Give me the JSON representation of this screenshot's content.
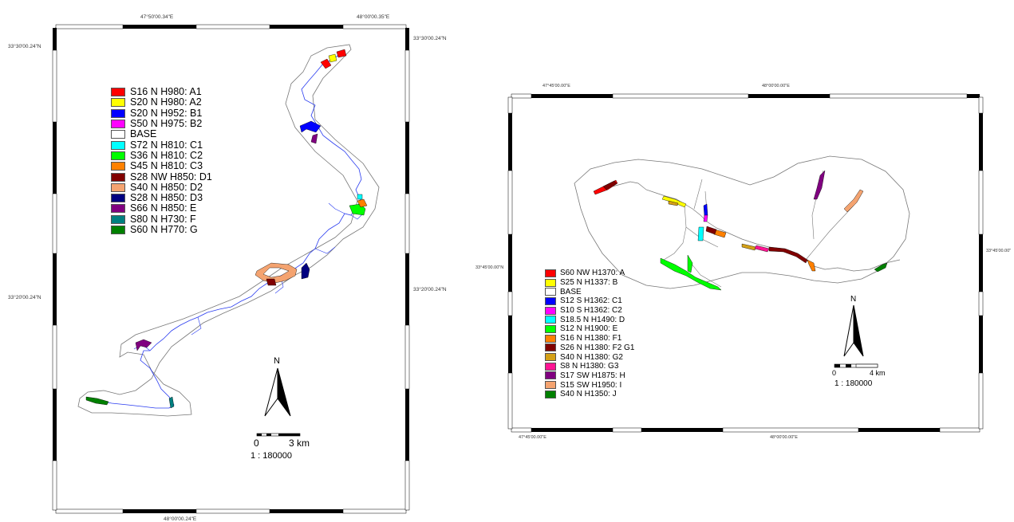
{
  "map1": {
    "coords": {
      "top_left": "47°50'00.34\"E",
      "top_right": "48°00'00.35\"E",
      "left_top": "33°30'00.24\"N",
      "right_top": "33°30'00.24\"N",
      "left_mid": "33°20'00.24\"N",
      "right_mid": "33°20'00.24\"N",
      "bottom": "48°00'00.24\"E"
    },
    "legend": [
      {
        "label": "S16 N H980: A1",
        "color": "#ff0000"
      },
      {
        "label": "S20 N H980: A2",
        "color": "#ffff00"
      },
      {
        "label": "S20 N H952: B1",
        "color": "#0000ff"
      },
      {
        "label": "S50 N H975: B2",
        "color": "#ff00ff"
      },
      {
        "label": "BASE",
        "color": "#ffffff"
      },
      {
        "label": "S72 N H810: C1",
        "color": "#00ffff"
      },
      {
        "label": "S36 N H810: C2",
        "color": "#00ff00"
      },
      {
        "label": "S45 N H810: C3",
        "color": "#ff8000"
      },
      {
        "label": "S28 NW H850: D1",
        "color": "#800000"
      },
      {
        "label": "S40 N H850: D2",
        "color": "#f4a370"
      },
      {
        "label": "S28 N H850: D3",
        "color": "#000080"
      },
      {
        "label": "S66 N H850: E",
        "color": "#800080"
      },
      {
        "label": "S80 N H730: F",
        "color": "#008080"
      },
      {
        "label": "S60 N H770: G",
        "color": "#008000"
      }
    ],
    "north_letter": "N",
    "scale_zero": "0",
    "scale_end": "3 km",
    "ratio": "1 : 180000"
  },
  "map2": {
    "coords": {
      "top_left": "47°45'00.00\"E",
      "top_right": "48°00'00.00\"E",
      "left_mid": "33°45'00.00\"N",
      "right_mid": "33°45'00.00\"",
      "bottom_left": "47°45'00.00\"E",
      "bottom_right": "48°00'00.00\"E"
    },
    "legend": [
      {
        "label": "S60 NW H1370: A",
        "color": "#ff0000"
      },
      {
        "label": "S25 N H1337: B",
        "color": "#ffff00"
      },
      {
        "label": "BASE",
        "color": "#ffffff"
      },
      {
        "label": "S12 S H1362: C1",
        "color": "#0000ff"
      },
      {
        "label": "S10 S H1362: C2",
        "color": "#ff00ff"
      },
      {
        "label": "S18.5 N H1490: D",
        "color": "#00ffff"
      },
      {
        "label": "S12 N H1900: E",
        "color": "#00ff00"
      },
      {
        "label": "S16 N H1380: F1",
        "color": "#ff8000"
      },
      {
        "label": "S26 N H1380: F2 G1",
        "color": "#800000"
      },
      {
        "label": "S40 N H1380: G2",
        "color": "#d4a017"
      },
      {
        "label": "S8 N H1380: G3",
        "color": "#ff1493"
      },
      {
        "label": "S17 SW H1875: H",
        "color": "#800080"
      },
      {
        "label": "S15 SW H1950: I",
        "color": "#f4a370"
      },
      {
        "label": "S40 N H1350: J",
        "color": "#008000"
      }
    ],
    "north_letter": "N",
    "scale_zero": "0",
    "scale_end": "4 km",
    "ratio": "1 : 180000"
  }
}
